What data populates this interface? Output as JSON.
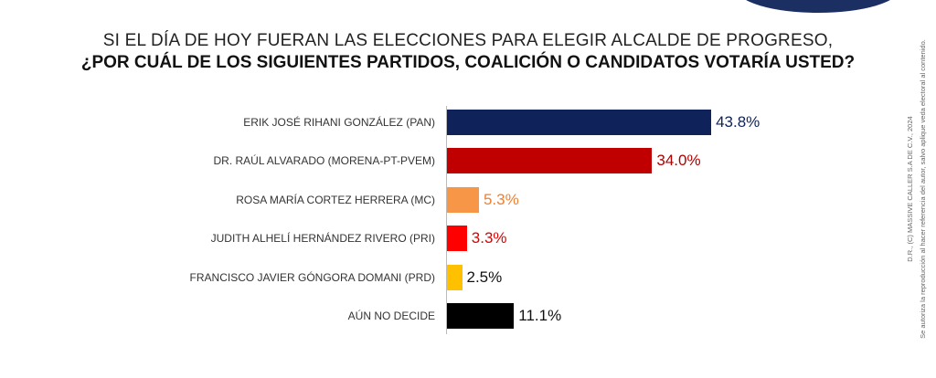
{
  "chart_data": {
    "type": "bar",
    "orientation": "horizontal",
    "title": "SI EL DÍA DE HOY FUERAN LAS ELECCIONES PARA ELEGIR ALCALDE DE PROGRESO,",
    "subtitle": "¿POR CUÁL DE LOS SIGUIENTES PARTIDOS, COALICIÓN O CANDIDATOS VOTARÍA USTED?",
    "categories": [
      "ERIK JOSÉ RIHANI GONZÁLEZ (PAN)",
      "DR. RAÚL ALVARADO (MORENA-PT-PVEM)",
      "ROSA MARÍA CORTEZ HERRERA (MC)",
      "JUDITH ALHELÍ HERNÁNDEZ RIVERO (PRI)",
      "FRANCISCO JAVIER GÓNGORA DOMANI (PRD)",
      "AÚN NO DECIDE"
    ],
    "values": [
      43.8,
      34.0,
      5.3,
      3.3,
      2.5,
      11.1
    ],
    "value_labels": [
      "43.8%",
      "34.0%",
      "5.3%",
      "3.3%",
      "2.5%",
      "11.1%"
    ],
    "colors": [
      "#0f2259",
      "#c00000",
      "#f79646",
      "#ff0000",
      "#ffc000",
      "#000000"
    ],
    "label_colors": [
      "#0f2259",
      "#b00000",
      "#f07f30",
      "#e00000",
      "#111111",
      "#111111"
    ],
    "xlim": [
      0,
      50
    ]
  },
  "footer": {
    "line1": "D.R., (C) MASSIVE CALLER S.A DE C.V., 2024",
    "line2": "Se autoriza la reproducción al hacer referencia del autor, salvo aplique veda electoral al contenido."
  }
}
